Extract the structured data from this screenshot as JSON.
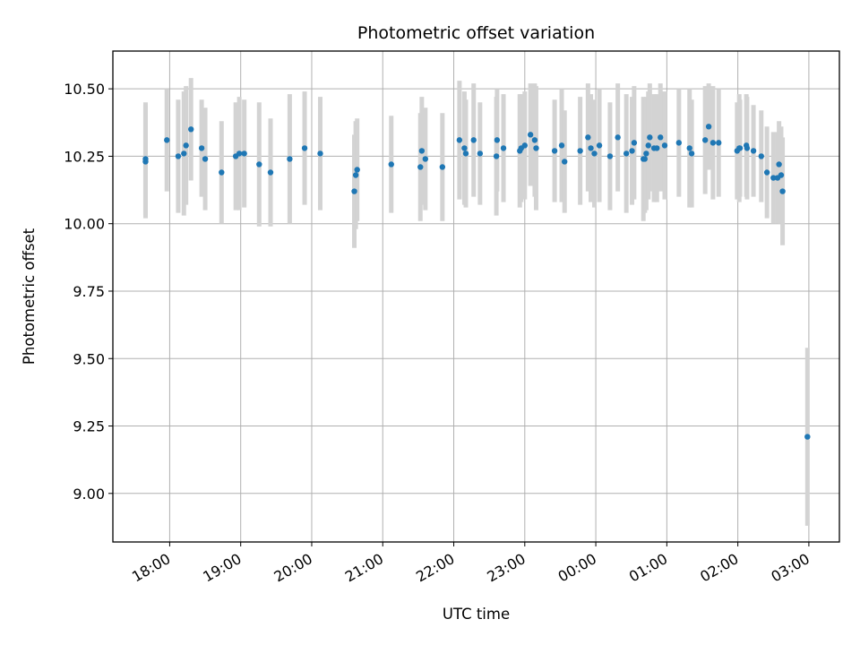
{
  "chart_data": {
    "type": "scatter",
    "title": "Photometric offset variation",
    "xlabel": "UTC time",
    "ylabel": "Photometric offset",
    "x_unit": "hours",
    "x_tick_values": [
      18,
      19,
      20,
      21,
      22,
      23,
      24,
      25,
      26,
      27
    ],
    "x_tick_labels": [
      "18:00",
      "19:00",
      "20:00",
      "21:00",
      "22:00",
      "23:00",
      "00:00",
      "01:00",
      "02:00",
      "03:00"
    ],
    "y_ticks": [
      9.0,
      9.25,
      9.5,
      9.75,
      10.0,
      10.25,
      10.5
    ],
    "y_tick_labels": [
      "9.00",
      "9.25",
      "9.50",
      "9.75",
      "10.00",
      "10.25",
      "10.50"
    ],
    "xlim": [
      17.2,
      27.43
    ],
    "ylim": [
      8.82,
      10.64
    ],
    "grid": true,
    "colors": {
      "point": "#1f77b4",
      "errorbar": "#d3d3d3",
      "grid": "#b0b0b0"
    },
    "x": [
      17.66,
      17.66,
      17.96,
      18.12,
      18.2,
      18.23,
      18.3,
      18.45,
      18.5,
      18.73,
      18.93,
      18.98,
      19.05,
      19.26,
      19.42,
      19.69,
      19.9,
      20.12,
      20.6,
      20.62,
      20.64,
      21.12,
      21.53,
      21.55,
      21.6,
      21.84,
      22.08,
      22.15,
      22.17,
      22.28,
      22.37,
      22.6,
      22.61,
      22.7,
      22.93,
      22.95,
      23.0,
      23.08,
      23.14,
      23.16,
      23.42,
      23.52,
      23.56,
      23.78,
      23.89,
      23.93,
      23.98,
      24.05,
      24.2,
      24.31,
      24.43,
      24.51,
      24.54,
      24.67,
      24.69,
      24.71,
      24.74,
      24.76,
      24.82,
      24.86,
      24.91,
      24.97,
      25.17,
      25.32,
      25.35,
      25.54,
      25.59,
      25.65,
      25.73,
      25.99,
      26.02,
      26.03,
      26.12,
      26.13,
      26.22,
      26.33,
      26.41,
      26.5,
      26.56,
      26.58,
      26.61,
      26.63,
      26.98
    ],
    "y": [
      10.23,
      10.24,
      10.31,
      10.25,
      10.26,
      10.29,
      10.35,
      10.28,
      10.24,
      10.19,
      10.25,
      10.26,
      10.26,
      10.22,
      10.19,
      10.24,
      10.28,
      10.26,
      10.12,
      10.18,
      10.2,
      10.22,
      10.21,
      10.27,
      10.24,
      10.21,
      10.31,
      10.28,
      10.26,
      10.31,
      10.26,
      10.25,
      10.31,
      10.28,
      10.27,
      10.28,
      10.29,
      10.33,
      10.31,
      10.28,
      10.27,
      10.29,
      10.23,
      10.27,
      10.32,
      10.28,
      10.26,
      10.29,
      10.25,
      10.32,
      10.26,
      10.27,
      10.3,
      10.24,
      10.24,
      10.26,
      10.29,
      10.32,
      10.28,
      10.28,
      10.32,
      10.29,
      10.3,
      10.28,
      10.26,
      10.31,
      10.36,
      10.3,
      10.3,
      10.27,
      10.28,
      10.28,
      10.29,
      10.28,
      10.27,
      10.25,
      10.19,
      10.17,
      10.17,
      10.22,
      10.18,
      10.12,
      9.21
    ],
    "err": [
      0.21,
      0.21,
      0.19,
      0.21,
      0.23,
      0.22,
      0.19,
      0.18,
      0.19,
      0.19,
      0.2,
      0.21,
      0.2,
      0.23,
      0.2,
      0.24,
      0.21,
      0.21,
      0.21,
      0.2,
      0.19,
      0.18,
      0.2,
      0.2,
      0.19,
      0.2,
      0.22,
      0.21,
      0.2,
      0.21,
      0.19,
      0.22,
      0.19,
      0.2,
      0.21,
      0.2,
      0.2,
      0.19,
      0.21,
      0.23,
      0.19,
      0.21,
      0.19,
      0.2,
      0.2,
      0.2,
      0.2,
      0.21,
      0.2,
      0.2,
      0.22,
      0.2,
      0.21,
      0.23,
      0.2,
      0.21,
      0.2,
      0.2,
      0.2,
      0.2,
      0.2,
      0.2,
      0.2,
      0.22,
      0.2,
      0.2,
      0.16,
      0.21,
      0.2,
      0.18,
      0.2,
      0.18,
      0.19,
      0.19,
      0.17,
      0.17,
      0.17,
      0.17,
      0.17,
      0.16,
      0.18,
      0.2,
      0.33
    ]
  }
}
